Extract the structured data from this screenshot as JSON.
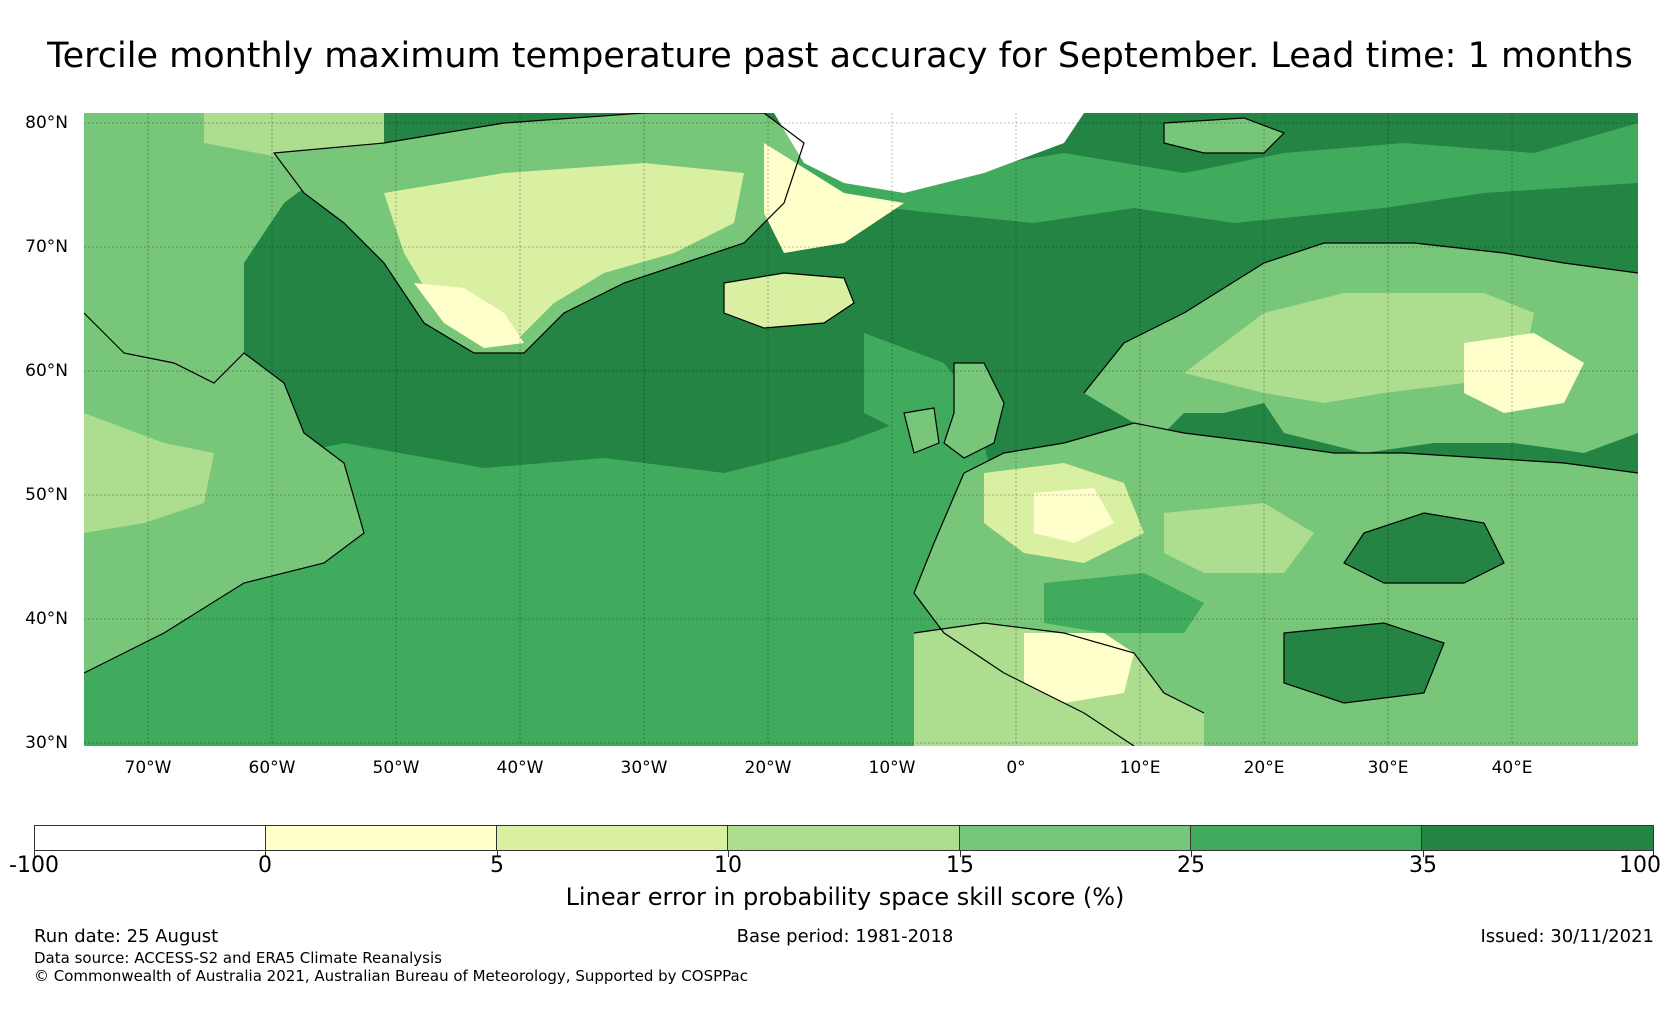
{
  "title": "Tercile monthly maximum temperature past accuracy for September. Lead time: 1 months",
  "map": {
    "ocean_colors": [
      "#238443",
      "#41ab5d"
    ],
    "land_colors": [
      "#78c679",
      "#addd8e",
      "#d9f0a3",
      "#ffffcc"
    ],
    "latitude_labels": [
      "80°N",
      "70°N",
      "60°N",
      "50°N",
      "40°N",
      "30°N"
    ],
    "longitude_labels": [
      "70°W",
      "60°W",
      "50°W",
      "40°W",
      "30°W",
      "20°W",
      "10°W",
      "0°",
      "10°E",
      "20°E",
      "30°E",
      "40°E"
    ],
    "grid": true,
    "coastline_color": "#000000"
  },
  "colorbar": {
    "segments": [
      {
        "from": "-100",
        "to": "0",
        "color": "#ffffff"
      },
      {
        "from": "0",
        "to": "5",
        "color": "#ffffcc"
      },
      {
        "from": "5",
        "to": "10",
        "color": "#d9f0a3"
      },
      {
        "from": "10",
        "to": "15",
        "color": "#addd8e"
      },
      {
        "from": "15",
        "to": "25",
        "color": "#78c679"
      },
      {
        "from": "25",
        "to": "35",
        "color": "#41ab5d"
      },
      {
        "from": "35",
        "to": "100",
        "color": "#238443"
      }
    ],
    "ticks": [
      "-100",
      "0",
      "5",
      "10",
      "15",
      "25",
      "35",
      "100"
    ],
    "label": "Linear error in probability space skill score (%)"
  },
  "footer": {
    "run_date": "Run date: 25 August",
    "base_period": "Base period: 1981-2018",
    "issued": "Issued: 30/11/2021",
    "data_source": "Data source: ACCESS-S2 and ERA5 Climate Reanalysis",
    "copyright": "© Commonwealth of Australia 2021, Australian Bureau of Meteorology, Supported by COSPPac"
  }
}
